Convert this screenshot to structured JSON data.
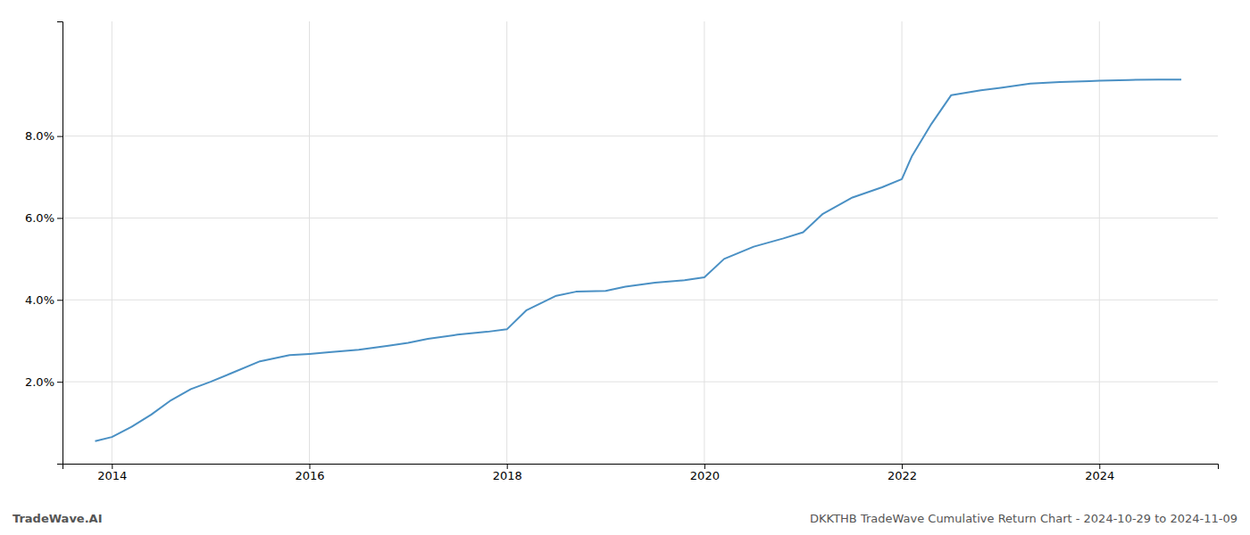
{
  "chart_data": {
    "type": "line",
    "title": "DKKTHB TradeWave Cumulative Return Chart - 2024-10-29 to 2024-11-09",
    "annotations": [
      "TradeWave.AI"
    ],
    "color": "#4a90c4",
    "grid": true,
    "x": [
      2013.83,
      2014.0,
      2014.2,
      2014.4,
      2014.6,
      2014.8,
      2015.0,
      2015.2,
      2015.5,
      2015.8,
      2016.0,
      2016.2,
      2016.5,
      2016.8,
      2017.0,
      2017.2,
      2017.5,
      2017.8,
      2018.0,
      2018.2,
      2018.5,
      2018.7,
      2019.0,
      2019.2,
      2019.5,
      2019.8,
      2020.0,
      2020.2,
      2020.5,
      2020.8,
      2021.0,
      2021.2,
      2021.5,
      2021.8,
      2022.0,
      2022.1,
      2022.3,
      2022.5,
      2022.8,
      2023.0,
      2023.3,
      2023.6,
      2023.9,
      2024.0,
      2024.3,
      2024.6,
      2024.83
    ],
    "values": [
      0.55,
      0.65,
      0.9,
      1.2,
      1.55,
      1.82,
      2.0,
      2.2,
      2.5,
      2.65,
      2.68,
      2.72,
      2.78,
      2.88,
      2.95,
      3.05,
      3.15,
      3.22,
      3.28,
      3.75,
      4.1,
      4.2,
      4.22,
      4.32,
      4.42,
      4.48,
      4.55,
      5.0,
      5.3,
      5.5,
      5.65,
      6.1,
      6.5,
      6.75,
      6.95,
      7.5,
      8.3,
      9.0,
      9.12,
      9.18,
      9.28,
      9.32,
      9.34,
      9.35,
      9.37,
      9.38,
      9.38
    ],
    "xlim": [
      2013.5,
      2025.2
    ],
    "ylim": [
      0.0,
      10.8
    ],
    "xticks": [
      2014,
      2016,
      2018,
      2020,
      2022,
      2024
    ],
    "yticks": [
      {
        "value": 2.0,
        "label": "2.0%"
      },
      {
        "value": 4.0,
        "label": "4.0%"
      },
      {
        "value": 6.0,
        "label": "6.0%"
      },
      {
        "value": 8.0,
        "label": "8.0%"
      }
    ]
  }
}
